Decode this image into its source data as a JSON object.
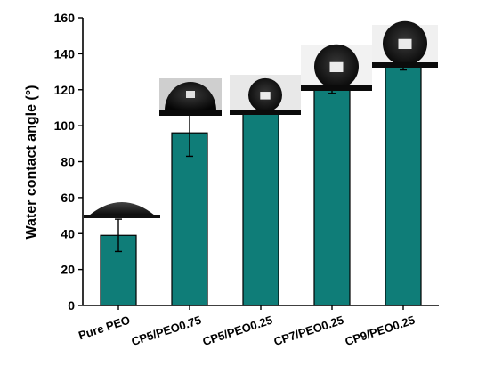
{
  "chart_data": {
    "type": "bar",
    "categories": [
      "Pure PEO",
      "CP5/PEO0.75",
      "CP5/PEO0.25",
      "CP7/PEO0.25",
      "CP9/PEO0.25"
    ],
    "values": [
      39,
      96,
      109,
      121,
      133
    ],
    "errors": [
      9,
      13,
      1,
      3,
      2
    ],
    "ylabel": "Water contact angle (°)",
    "ylim": [
      0,
      160
    ],
    "yticks": [
      0,
      20,
      40,
      60,
      80,
      100,
      120,
      140,
      160
    ],
    "bar_color": "#0f7d78",
    "grid": false,
    "droplet_insets": true
  }
}
